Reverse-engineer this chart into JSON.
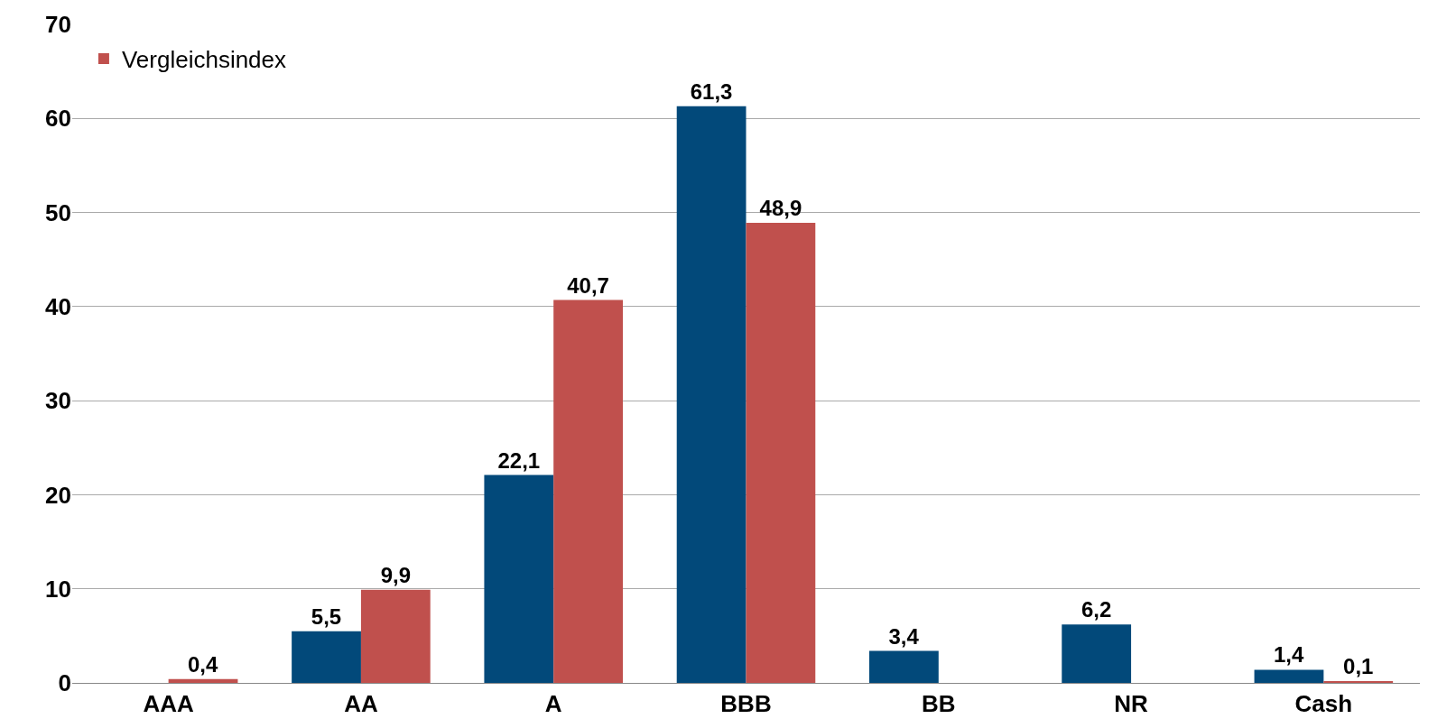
{
  "chart_data": {
    "type": "bar",
    "categories": [
      "AAA",
      "AA",
      "A",
      "BBB",
      "BB",
      "NR",
      "Cash"
    ],
    "series": [
      {
        "color": "#02497a",
        "values": [
          null,
          5.5,
          22.1,
          61.3,
          3.4,
          6.2,
          1.4
        ],
        "value_labels": [
          null,
          "5,5",
          "22,1",
          "61,3",
          "3,4",
          "6,2",
          "1,4"
        ]
      },
      {
        "name": "Vergleichsindex",
        "color": "#c0504d",
        "values": [
          0.4,
          9.9,
          40.7,
          48.9,
          null,
          null,
          0.1
        ],
        "value_labels": [
          "0,4",
          "9,9",
          "40,7",
          "48,9",
          null,
          null,
          "0,1"
        ]
      }
    ],
    "ylim": [
      0,
      70
    ],
    "yticks": [
      0,
      10,
      20,
      30,
      40,
      50,
      60,
      70
    ],
    "grid": "y",
    "legend": "top left"
  }
}
